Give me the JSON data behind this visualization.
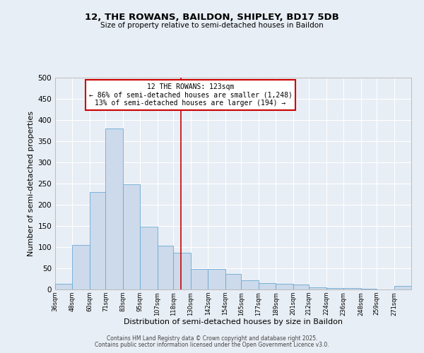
{
  "title": "12, THE ROWANS, BAILDON, SHIPLEY, BD17 5DB",
  "subtitle": "Size of property relative to semi-detached houses in Baildon",
  "xlabel": "Distribution of semi-detached houses by size in Baildon",
  "ylabel": "Number of semi-detached properties",
  "bin_labels": [
    "36sqm",
    "48sqm",
    "60sqm",
    "71sqm",
    "83sqm",
    "95sqm",
    "107sqm",
    "118sqm",
    "130sqm",
    "142sqm",
    "154sqm",
    "165sqm",
    "177sqm",
    "189sqm",
    "201sqm",
    "212sqm",
    "224sqm",
    "236sqm",
    "248sqm",
    "259sqm",
    "271sqm"
  ],
  "bin_edges": [
    36,
    48,
    60,
    71,
    83,
    95,
    107,
    118,
    130,
    142,
    154,
    165,
    177,
    189,
    201,
    212,
    224,
    236,
    248,
    259,
    271,
    283
  ],
  "bar_heights": [
    13,
    105,
    230,
    380,
    248,
    148,
    103,
    87,
    48,
    48,
    37,
    22,
    15,
    13,
    12,
    5,
    4,
    3,
    2,
    0,
    8
  ],
  "bar_color": "#ccdaeb",
  "bar_edge_color": "#6aaad4",
  "vline_x": 123,
  "vline_color": "#cc0000",
  "annotation_title": "12 THE ROWANS: 123sqm",
  "annotation_line1": "← 86% of semi-detached houses are smaller (1,248)",
  "annotation_line2": "13% of semi-detached houses are larger (194) →",
  "annotation_box_color": "#cc0000",
  "ylim": [
    0,
    500
  ],
  "yticks": [
    0,
    50,
    100,
    150,
    200,
    250,
    300,
    350,
    400,
    450,
    500
  ],
  "bg_color": "#e8eef5",
  "grid_color": "#ffffff",
  "footer_line1": "Contains HM Land Registry data © Crown copyright and database right 2025.",
  "footer_line2": "Contains public sector information licensed under the Open Government Licence v3.0."
}
